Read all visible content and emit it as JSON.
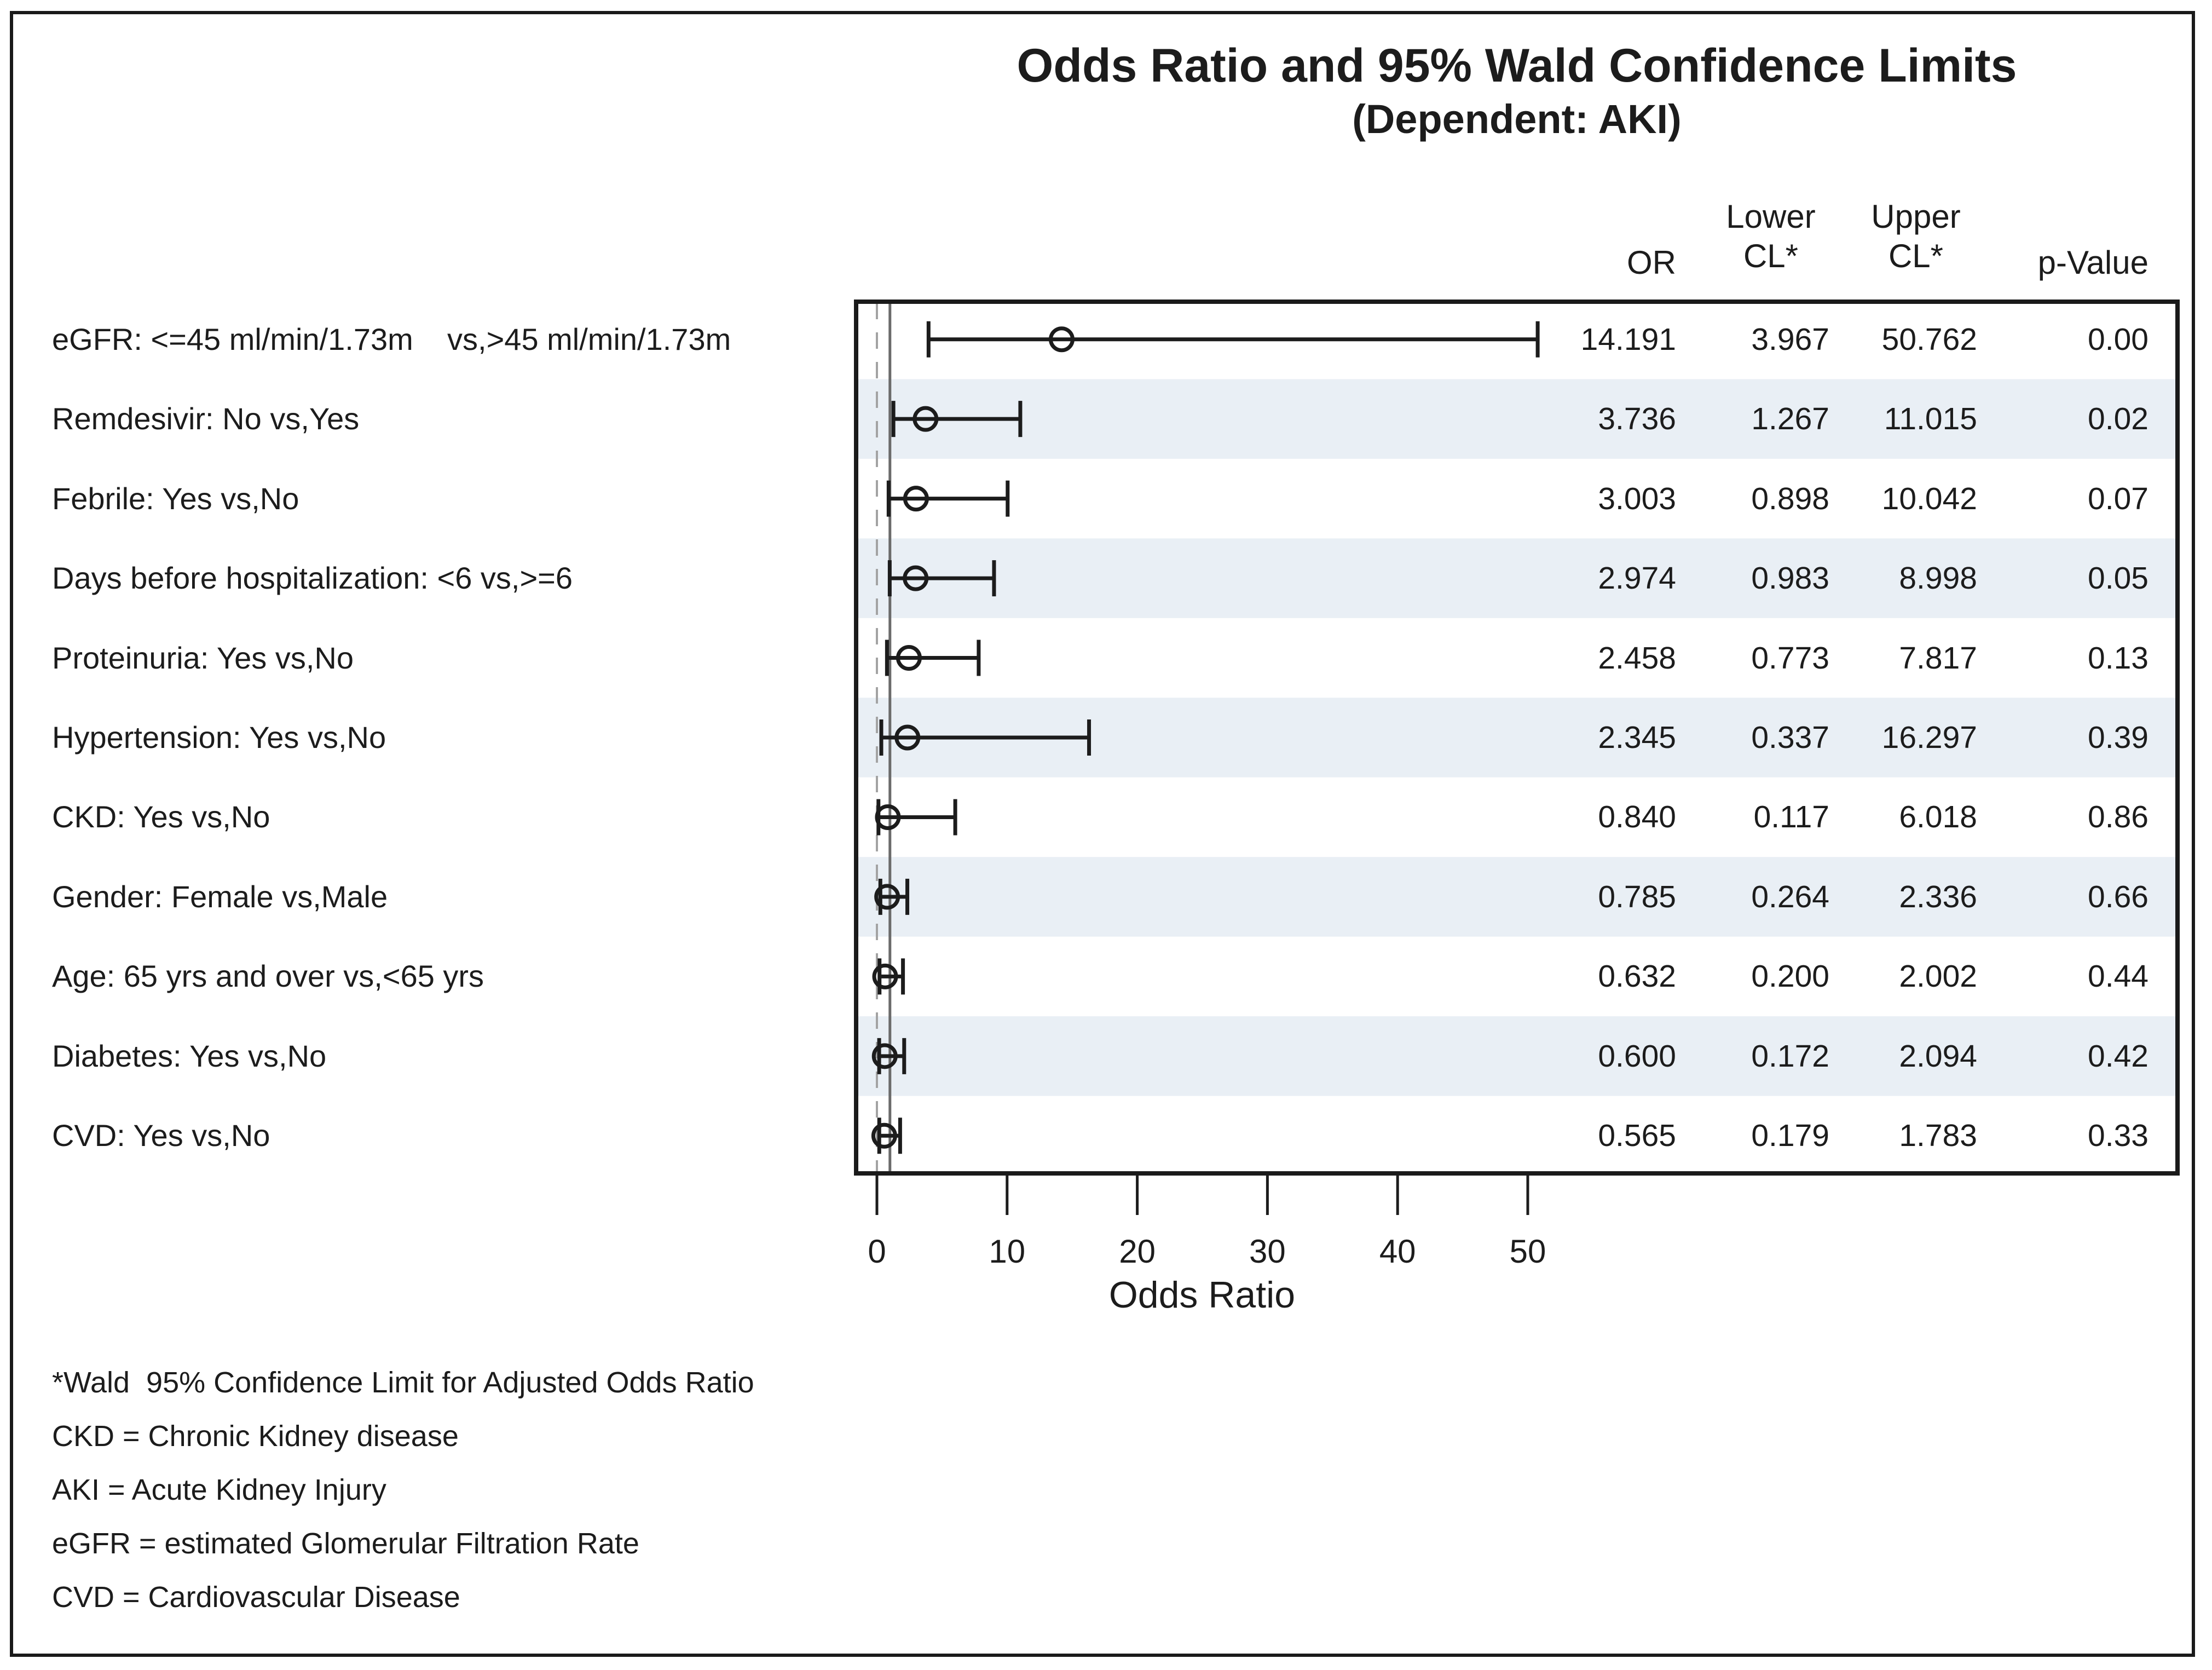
{
  "figure": {
    "title_line1": "Odds Ratio and 95% Wald Confidence Limits",
    "title_line2": "(Dependent: AKI)",
    "columns": {
      "or": "OR",
      "lower_line1": "Lower",
      "lower_line2": "CL*",
      "upper_line1": "Upper",
      "upper_line2": "CL*",
      "pvalue": "p-Value"
    },
    "footnotes": [
      "*Wald  95% Confidence Limit for Adjusted Odds Ratio",
      "CKD = Chronic Kidney disease",
      "AKI = Acute Kidney Injury",
      "eGFR = estimated Glomerular Filtration Rate",
      "CVD = Cardiovascular Disease"
    ]
  },
  "chart_data": {
    "type": "scatter",
    "subtype": "forest-plot",
    "title": "Odds Ratio and 95% Wald Confidence Limits (Dependent: AKI)",
    "xlabel": "Odds Ratio",
    "ylabel": "",
    "xlim": [
      0,
      100
    ],
    "xticks": [
      "0",
      "10",
      "20",
      "30",
      "40",
      "50"
    ],
    "grid": "off",
    "legend": "none",
    "reference_lines": [
      {
        "x": 0,
        "style": "dashed",
        "color": "#a3a3a3"
      },
      {
        "x": 1,
        "style": "solid",
        "color": "#6b6b6b"
      }
    ],
    "band_color": "#e9eff5",
    "marker": "open-circle",
    "rows": [
      {
        "label": "eGFR: <=45 ml/min/1.73m    vs,>45 ml/min/1.73m",
        "or": "14.191",
        "lower": "3.967",
        "upper": "50.762",
        "p": "0.00"
      },
      {
        "label": "Remdesivir: No vs,Yes",
        "or": "3.736",
        "lower": "1.267",
        "upper": "11.015",
        "p": "0.02"
      },
      {
        "label": "Febrile: Yes vs,No",
        "or": "3.003",
        "lower": "0.898",
        "upper": "10.042",
        "p": "0.07"
      },
      {
        "label": "Days before hospitalization: <6 vs,>=6",
        "or": "2.974",
        "lower": "0.983",
        "upper": "8.998",
        "p": "0.05"
      },
      {
        "label": "Proteinuria: Yes vs,No",
        "or": "2.458",
        "lower": "0.773",
        "upper": "7.817",
        "p": "0.13"
      },
      {
        "label": "Hypertension: Yes vs,No",
        "or": "2.345",
        "lower": "0.337",
        "upper": "16.297",
        "p": "0.39"
      },
      {
        "label": "CKD: Yes vs,No",
        "or": "0.840",
        "lower": "0.117",
        "upper": "6.018",
        "p": "0.86"
      },
      {
        "label": "Gender: Female vs,Male",
        "or": "0.785",
        "lower": "0.264",
        "upper": "2.336",
        "p": "0.66"
      },
      {
        "label": "Age: 65 yrs and over vs,<65 yrs",
        "or": "0.632",
        "lower": "0.200",
        "upper": "2.002",
        "p": "0.44"
      },
      {
        "label": "Diabetes: Yes vs,No",
        "or": "0.600",
        "lower": "0.172",
        "upper": "2.094",
        "p": "0.42"
      },
      {
        "label": "CVD: Yes vs,No",
        "or": "0.565",
        "lower": "0.179",
        "upper": "1.783",
        "p": "0.33"
      }
    ]
  }
}
